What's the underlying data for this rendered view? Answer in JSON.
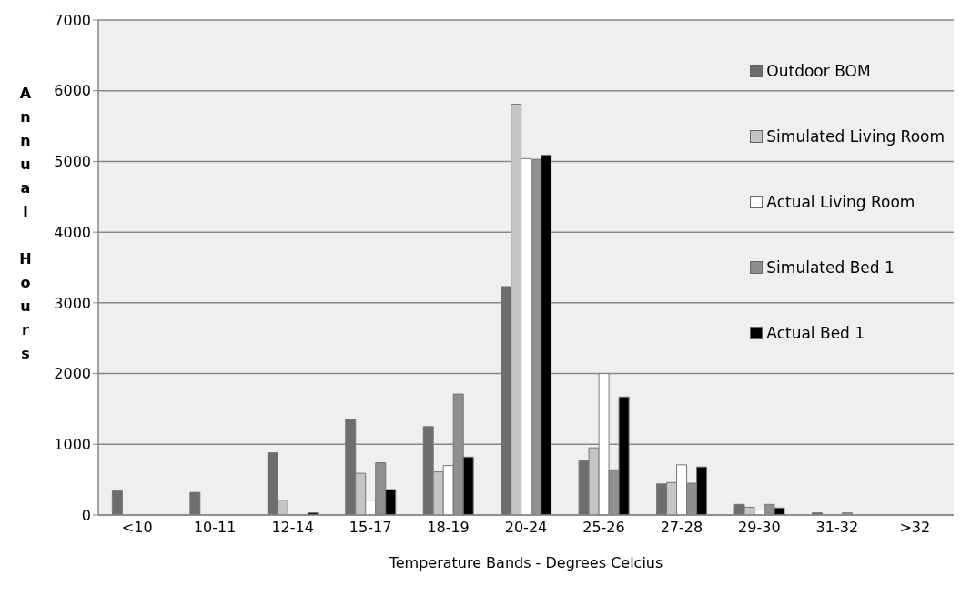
{
  "chart_data": {
    "type": "bar",
    "xlabel": "Temperature Bands - Degrees Celcius",
    "ylabel": "Annual Hours",
    "categories": [
      "<10",
      "10-11",
      "12-14",
      "15-17",
      "18-19",
      "20-24",
      "25-26",
      "27-28",
      "29-30",
      "31-32",
      ">32"
    ],
    "series": [
      {
        "name": "Outdoor BOM",
        "color": "#6d6d6d",
        "values": [
          340,
          320,
          880,
          1350,
          1250,
          3230,
          770,
          440,
          150,
          30,
          0
        ]
      },
      {
        "name": "Simulated Living Room",
        "color": "#c4c4c4",
        "values": [
          0,
          0,
          210,
          590,
          610,
          5810,
          950,
          460,
          110,
          0,
          0
        ]
      },
      {
        "name": "Actual Living Room",
        "color": "#ffffff",
        "values": [
          0,
          0,
          0,
          210,
          700,
          5040,
          2000,
          710,
          70,
          0,
          0
        ]
      },
      {
        "name": "Simulated Bed 1",
        "color": "#8f8f8f",
        "values": [
          0,
          0,
          0,
          740,
          1710,
          5030,
          640,
          450,
          150,
          30,
          0
        ]
      },
      {
        "name": "Actual Bed 1",
        "color": "#000000",
        "values": [
          0,
          0,
          30,
          360,
          820,
          5090,
          1670,
          680,
          100,
          0,
          0
        ]
      }
    ],
    "ylim": [
      0,
      7000
    ],
    "yticks": [
      0,
      1000,
      2000,
      3000,
      4000,
      5000,
      6000,
      7000
    ],
    "grid": "y",
    "legend": "right"
  }
}
